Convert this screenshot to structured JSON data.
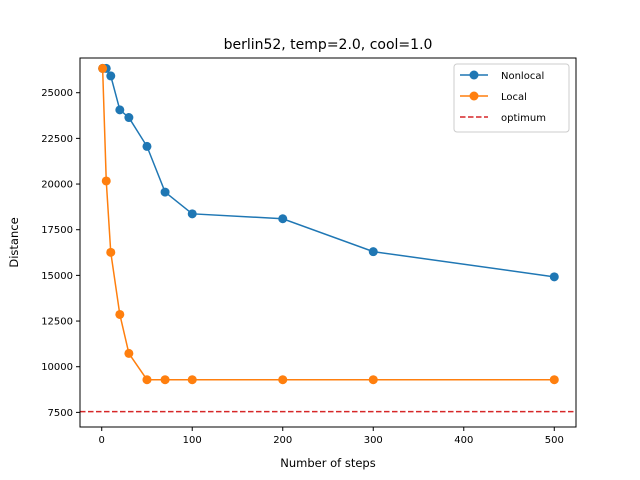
{
  "chart_data": {
    "type": "line",
    "title": "berlin52, temp=2.0, cool=1.0",
    "xlabel": "Number of steps",
    "ylabel": "Distance",
    "xlim": [
      -24,
      524
    ],
    "ylim": [
      6700,
      26900
    ],
    "xticks": [
      0,
      100,
      200,
      300,
      400,
      500
    ],
    "yticks": [
      7500,
      10000,
      12500,
      15000,
      17500,
      20000,
      22500,
      25000
    ],
    "grid": false,
    "legend_position": "top-right",
    "series": [
      {
        "name": "Nonlocal",
        "color": "#1f77b4",
        "marker": "circle",
        "x": [
          1,
          5,
          10,
          20,
          30,
          50,
          70,
          100,
          200,
          300,
          500
        ],
        "y": [
          26330,
          26330,
          25920,
          24060,
          23640,
          22060,
          19560,
          18370,
          18100,
          16300,
          14920
        ]
      },
      {
        "name": "Local",
        "color": "#ff7f0e",
        "marker": "circle",
        "x": [
          1,
          5,
          10,
          20,
          30,
          50,
          70,
          100,
          200,
          300,
          500
        ],
        "y": [
          26330,
          20170,
          16260,
          12860,
          10730,
          9290,
          9290,
          9290,
          9290,
          9290,
          9290
        ]
      },
      {
        "name": "optimum",
        "color": "#d62728",
        "style": "dashed-hline",
        "y": 7542
      }
    ]
  }
}
